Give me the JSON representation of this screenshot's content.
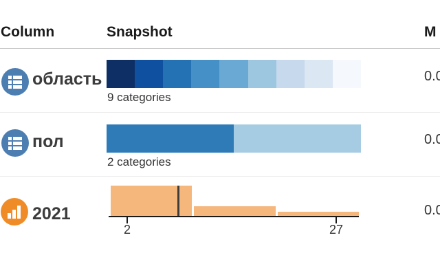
{
  "header": {
    "column": "Column",
    "snapshot": "Snapshot",
    "missing": "M"
  },
  "rows": [
    {
      "label": "область",
      "type": "categorical",
      "icon": "categorical-column-icon",
      "icon_color": "#4d7eb2",
      "caption": "9 categories",
      "missing_value": "0.0",
      "segments": [
        "#0e2f66",
        "#0f51a0",
        "#2471b4",
        "#4690c8",
        "#6aa9d3",
        "#9dc6e0",
        "#c6d9ed",
        "#dce7f4",
        "#f5f9fd"
      ]
    },
    {
      "label": "пол",
      "type": "categorical",
      "icon": "categorical-column-icon",
      "icon_color": "#4d7eb2",
      "caption": "2 categories",
      "missing_value": "0.0",
      "segments": [
        "#2e7bb8",
        "#a6cce3"
      ]
    },
    {
      "label": "2021",
      "type": "numeric",
      "icon": "numeric-column-icon",
      "icon_color": "#f08c28",
      "missing_value": "0.0",
      "histogram": {
        "bar_color": "#f5b77c",
        "median_line_color": "#3d3d3d",
        "bars": [
          {
            "relative_height": 1.0
          },
          {
            "relative_height": 0.32
          },
          {
            "relative_height": 0.14
          }
        ],
        "axis_min_label": "2",
        "axis_max_label": "27"
      }
    }
  ],
  "chart_data": [
    {
      "type": "bar",
      "row": "область",
      "description": "9 equal-width category segments in a dark-to-light blue gradient",
      "categories_count": 9,
      "colors": [
        "#0e2f66",
        "#0f51a0",
        "#2471b4",
        "#4690c8",
        "#6aa9d3",
        "#9dc6e0",
        "#c6d9ed",
        "#dce7f4",
        "#f5f9fd"
      ]
    },
    {
      "type": "bar",
      "row": "пол",
      "description": "2 category segments of roughly equal width",
      "categories_count": 2,
      "proportions": [
        0.5,
        0.5
      ],
      "colors": [
        "#2e7bb8",
        "#a6cce3"
      ]
    },
    {
      "type": "histogram",
      "row": "2021",
      "x_min": 2,
      "x_max": 27,
      "bars_relative_height": [
        1.0,
        0.32,
        0.14
      ],
      "median_marker_relative_x": 0.275,
      "bar_color": "#f5b77c"
    }
  ]
}
